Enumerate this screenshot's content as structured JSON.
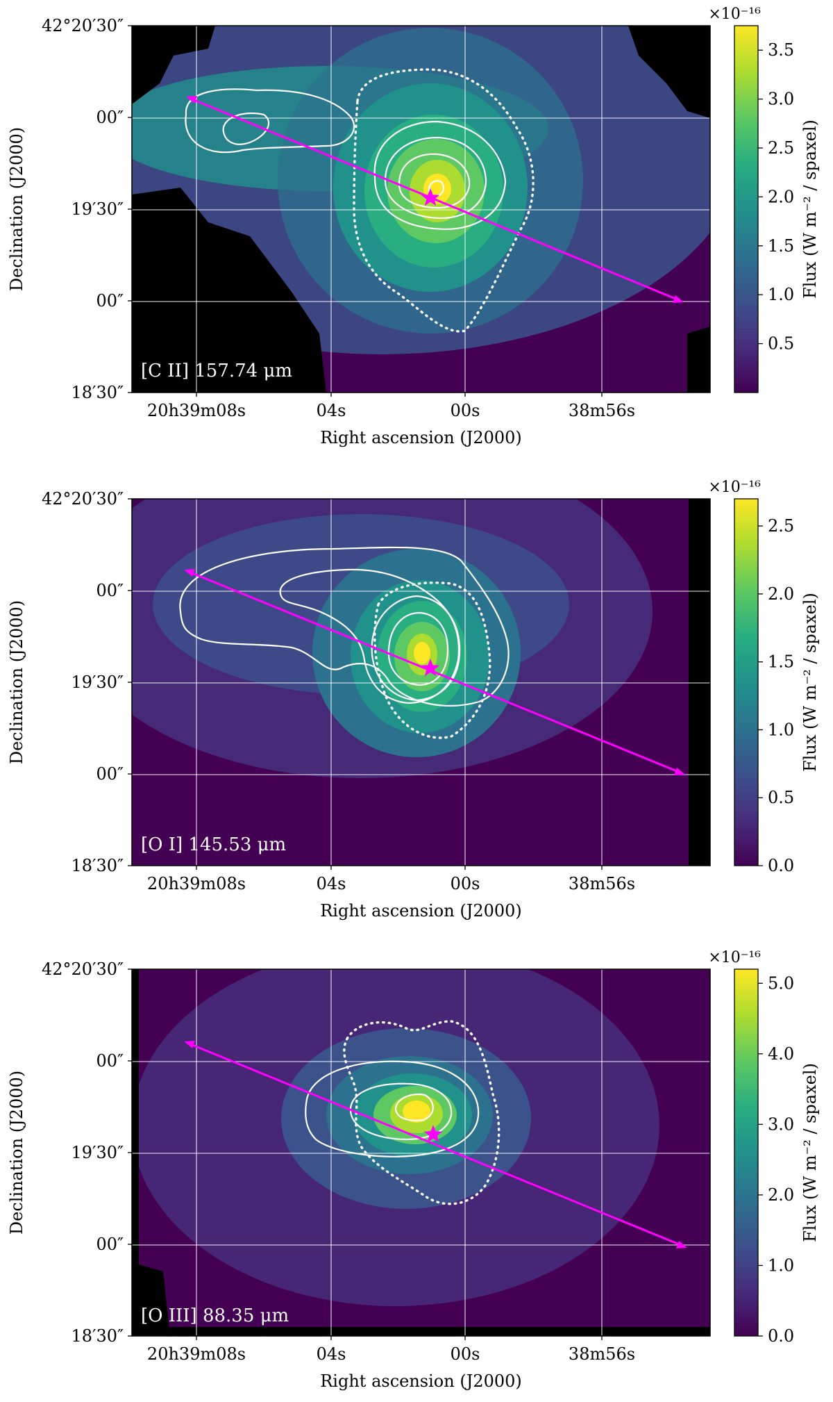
{
  "figure": {
    "panel_1_label": "[C II] 157.74 μm",
    "panel_2_label": "[O I] 145.53 μm",
    "panel_3_label": "[O III] 88.35 μm"
  },
  "chart_data": [
    {
      "type": "heatmap",
      "label": "[C II] 157.74 μm",
      "xlabel": "Right ascension (J2000)",
      "ylabel": "Declination (J2000)",
      "x_tick_labels": [
        "20h39m08s",
        "04s",
        "00s",
        "38m56s"
      ],
      "y_tick_labels": [
        "42°20′30″",
        "00″",
        "19′30″",
        "00″",
        "18′30″"
      ],
      "colorbar_label": "Flux (W m⁻² / spaxel)",
      "colorbar_multiplier": "×10⁻¹⁶",
      "colorbar_range": [
        0.0,
        3.75
      ],
      "colorbar_ticks": [
        "0.5",
        "1.0",
        "1.5",
        "2.0",
        "2.5",
        "3.0",
        "3.5"
      ],
      "peak_flux": 3.7,
      "colormap": "viridis",
      "marker": "star (magenta)",
      "arrow": "magenta double-headed cut line"
    },
    {
      "type": "heatmap",
      "label": "[O I] 145.53 μm",
      "xlabel": "Right ascension (J2000)",
      "ylabel": "Declination (J2000)",
      "x_tick_labels": [
        "20h39m08s",
        "04s",
        "00s",
        "38m56s"
      ],
      "y_tick_labels": [
        "42°20′30″",
        "00″",
        "19′30″",
        "00″",
        "18′30″"
      ],
      "colorbar_label": "Flux (W m⁻² / spaxel)",
      "colorbar_multiplier": "×10⁻¹⁶",
      "colorbar_range": [
        0.0,
        2.7
      ],
      "colorbar_ticks": [
        "0.0",
        "0.5",
        "1.0",
        "1.5",
        "2.0",
        "2.5"
      ],
      "peak_flux": 2.7,
      "colormap": "viridis",
      "marker": "star (magenta)",
      "arrow": "magenta double-headed cut line"
    },
    {
      "type": "heatmap",
      "label": "[O III] 88.35 μm",
      "xlabel": "Right ascension (J2000)",
      "ylabel": "Declination (J2000)",
      "x_tick_labels": [
        "20h39m08s",
        "04s",
        "00s",
        "38m56s"
      ],
      "y_tick_labels": [
        "42°20′30″",
        "00″",
        "19′30″",
        "00″",
        "18′30″"
      ],
      "colorbar_label": "Flux (W m⁻² / spaxel)",
      "colorbar_multiplier": "×10⁻¹⁶",
      "colorbar_range": [
        0.0,
        5.2
      ],
      "colorbar_ticks": [
        "0.0",
        "1.0",
        "2.0",
        "3.0",
        "4.0",
        "5.0"
      ],
      "peak_flux": 5.2,
      "colormap": "viridis",
      "marker": "star (magenta)",
      "arrow": "magenta double-headed cut line"
    }
  ]
}
